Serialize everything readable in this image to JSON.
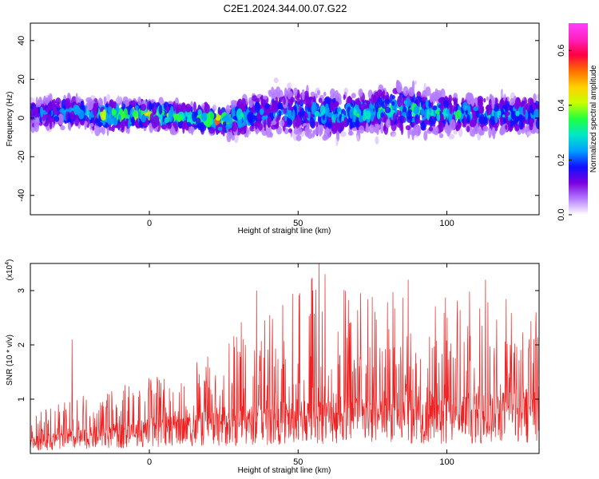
{
  "title": "C2E1.2024.344.00.07.G22",
  "chart_data": [
    {
      "type": "heatmap",
      "panel": "top",
      "xlabel": "Height of straight line (km)",
      "ylabel": "Frequency (Hz)",
      "xlim": [
        -40,
        131
      ],
      "ylim": [
        -50,
        49
      ],
      "xticks": [
        0,
        50,
        100
      ],
      "yticks": [
        -40,
        -20,
        0,
        20,
        40
      ],
      "colorbar": {
        "label": "Normalized spectral amplitude",
        "range": [
          0.0,
          0.7
        ],
        "ticks": [
          0.0,
          0.2,
          0.4,
          0.6
        ],
        "colors": [
          "#ffffff",
          "#b47cff",
          "#7a00e0",
          "#1010ff",
          "#00a0ff",
          "#00e8c8",
          "#20ff40",
          "#c8ff00",
          "#ffd000",
          "#ff7000",
          "#ff0040",
          "#ff20c0",
          "#ff40ff"
        ]
      },
      "band_center_hz": [
        {
          "x": -40,
          "y": 2
        },
        {
          "x": -25,
          "y": 3
        },
        {
          "x": -15,
          "y": 1
        },
        {
          "x": 0,
          "y": 2
        },
        {
          "x": 15,
          "y": 0
        },
        {
          "x": 25,
          "y": -2
        },
        {
          "x": 35,
          "y": 2
        },
        {
          "x": 50,
          "y": 3
        },
        {
          "x": 60,
          "y": 2
        },
        {
          "x": 70,
          "y": 2
        },
        {
          "x": 85,
          "y": 5
        },
        {
          "x": 100,
          "y": 2
        },
        {
          "x": 115,
          "y": 2
        },
        {
          "x": 131,
          "y": 2
        }
      ],
      "band_halfwidth_hz": [
        {
          "x": -40,
          "y": 10
        },
        {
          "x": -20,
          "y": 9
        },
        {
          "x": 0,
          "y": 8
        },
        {
          "x": 25,
          "y": 8
        },
        {
          "x": 35,
          "y": 12
        },
        {
          "x": 50,
          "y": 15
        },
        {
          "x": 60,
          "y": 14
        },
        {
          "x": 75,
          "y": 12
        },
        {
          "x": 87,
          "y": 16
        },
        {
          "x": 100,
          "y": 12
        },
        {
          "x": 131,
          "y": 11
        }
      ],
      "peak_amplitude": [
        {
          "x": -40,
          "y": 0.25
        },
        {
          "x": -20,
          "y": 0.35
        },
        {
          "x": -15,
          "y": 0.5
        },
        {
          "x": 0,
          "y": 0.5
        },
        {
          "x": 15,
          "y": 0.45
        },
        {
          "x": 22,
          "y": 0.6
        },
        {
          "x": 28,
          "y": 0.45
        },
        {
          "x": 35,
          "y": 0.3
        },
        {
          "x": 50,
          "y": 0.3
        },
        {
          "x": 65,
          "y": 0.38
        },
        {
          "x": 80,
          "y": 0.38
        },
        {
          "x": 100,
          "y": 0.35
        },
        {
          "x": 131,
          "y": 0.3
        }
      ]
    },
    {
      "type": "line",
      "panel": "bottom",
      "xlabel": "Height of straight line (km)",
      "ylabel": "SNR (10 * v/v)",
      "multiplier_label": "(x10",
      "multiplier_exp": "4",
      "multiplier_close": ")",
      "xlim": [
        -40,
        131
      ],
      "ylim": [
        0,
        35000
      ],
      "xticks": [
        0,
        50,
        100
      ],
      "yticks": [
        10000,
        20000,
        30000
      ],
      "ytick_labels": [
        "1",
        "2",
        "3"
      ],
      "color": "#ee2222",
      "baseline_envelope": [
        {
          "x": -40,
          "y": 2500
        },
        {
          "x": -20,
          "y": 4000
        },
        {
          "x": 0,
          "y": 5500
        },
        {
          "x": 20,
          "y": 6500
        },
        {
          "x": 30,
          "y": 7000
        },
        {
          "x": 50,
          "y": 8500
        },
        {
          "x": 70,
          "y": 9000
        },
        {
          "x": 100,
          "y": 9000
        },
        {
          "x": 131,
          "y": 10000
        }
      ],
      "spike_envelope": [
        {
          "x": -40,
          "y": 8000
        },
        {
          "x": -20,
          "y": 11000
        },
        {
          "x": 0,
          "y": 14000
        },
        {
          "x": 20,
          "y": 18000
        },
        {
          "x": 30,
          "y": 25000
        },
        {
          "x": 50,
          "y": 30000
        },
        {
          "x": 57,
          "y": 35000
        },
        {
          "x": 70,
          "y": 30000
        },
        {
          "x": 100,
          "y": 31000
        },
        {
          "x": 131,
          "y": 28000
        }
      ],
      "labeled_peaks": [
        {
          "x": -26,
          "y": 21000
        },
        {
          "x": 36,
          "y": 30000
        },
        {
          "x": 55,
          "y": 30000
        },
        {
          "x": 57,
          "y": 35000
        },
        {
          "x": 87,
          "y": 32000
        },
        {
          "x": 113,
          "y": 32000
        },
        {
          "x": 130,
          "y": 26000
        }
      ]
    }
  ]
}
